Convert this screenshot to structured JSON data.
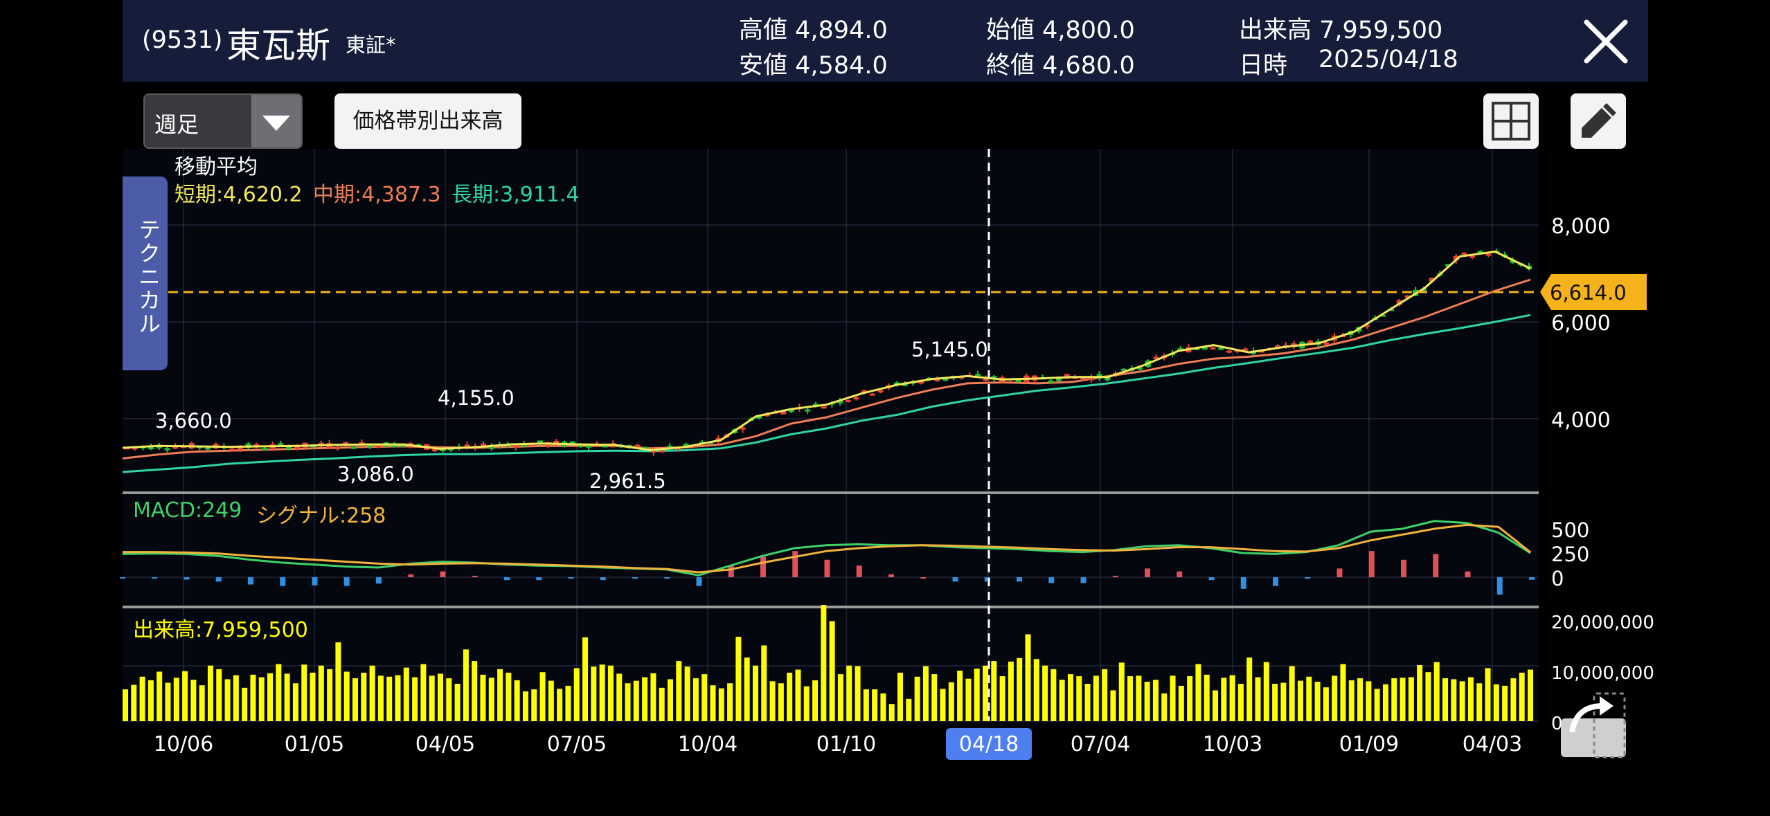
{
  "header": {
    "code": "(9531)",
    "name": "東瓦斯",
    "market": "東証*",
    "high": "高値 4,894.0",
    "low": "安値 4,584.0",
    "open": "始値 4,800.0",
    "close": "終値 4,680.0",
    "volume": "出来高 7,959,500",
    "date_label": "日時",
    "date": "2025/04/18",
    "close_icon": "close-icon"
  },
  "toolbar": {
    "period": "週足",
    "volume_profile": "価格帯別出来高",
    "layout_icon": "grid-icon",
    "draw_icon": "pencil-icon"
  },
  "technical_tab": "テクニカル",
  "legend": {
    "ma_title": "移動平均",
    "ma_short": "短期:4,620.2",
    "ma_mid": "中期:4,387.3",
    "ma_long": "長期:3,911.4",
    "macd": "MACD:249",
    "signal": "シグナル:258",
    "volume": "出来高:7,959,500"
  },
  "colors": {
    "bg": "#000000",
    "header_bg": "#161d3a",
    "up": "#e8452c",
    "down": "#1fc22e",
    "ma_short": "#f2e85a",
    "ma_mid": "#ef7d55",
    "ma_long": "#2fd6a4",
    "macd": "#3ed16a",
    "signal": "#f2b33c",
    "hist_pos": "#e05058",
    "hist_neg": "#2f8fe0",
    "volume": "#ffff00",
    "current_price": "#f5b21a",
    "date_badge": "#4f7ef0"
  },
  "chart_data": [
    {
      "type": "candlestick",
      "title": "",
      "x_tick_labels": [
        "10/06",
        "01/05",
        "04/05",
        "07/05",
        "10/04",
        "01/10",
        "04/18",
        "07/04",
        "10/03",
        "01/09",
        "04/03"
      ],
      "y_tick_labels": [
        "8,000",
        "6,000",
        "4,000"
      ],
      "current_price": "6,614.0",
      "current_value": 6614,
      "crosshair_date": "04/18",
      "annotations": [
        "3,660.0",
        "3,086.0",
        "4,155.0",
        "2,961.5",
        "5,145.0"
      ],
      "ma_short_points": [
        3400,
        3440,
        3430,
        3420,
        3430,
        3440,
        3460,
        3470,
        3470,
        3380,
        3410,
        3470,
        3490,
        3470,
        3460,
        3350,
        3420,
        3560,
        4050,
        4200,
        4290,
        4520,
        4700,
        4820,
        4880,
        4810,
        4830,
        4860,
        4860,
        5100,
        5400,
        5520,
        5370,
        5480,
        5560,
        5800,
        6250,
        6700,
        7350,
        7450,
        7100
      ],
      "ma_mid_points": [
        3180,
        3260,
        3320,
        3340,
        3360,
        3380,
        3400,
        3420,
        3430,
        3410,
        3400,
        3420,
        3440,
        3440,
        3440,
        3390,
        3410,
        3470,
        3640,
        3900,
        4030,
        4230,
        4430,
        4600,
        4730,
        4750,
        4730,
        4760,
        4880,
        4980,
        5130,
        5240,
        5280,
        5350,
        5470,
        5640,
        5870,
        6100,
        6370,
        6640,
        6870
      ],
      "ma_long_points": [
        2900,
        2950,
        3000,
        3070,
        3110,
        3150,
        3180,
        3220,
        3250,
        3270,
        3270,
        3290,
        3310,
        3330,
        3340,
        3330,
        3350,
        3390,
        3510,
        3680,
        3800,
        3960,
        4080,
        4250,
        4380,
        4480,
        4580,
        4650,
        4730,
        4830,
        4930,
        5050,
        5150,
        5260,
        5360,
        5470,
        5620,
        5750,
        5870,
        6000,
        6140
      ]
    },
    {
      "type": "line",
      "title": "",
      "series": [
        {
          "name": "MACD",
          "values": [
            240,
            245,
            240,
            220,
            180,
            150,
            130,
            110,
            100,
            140,
            160,
            150,
            130,
            120,
            115,
            100,
            90,
            80,
            20,
            120,
            220,
            300,
            330,
            340,
            330,
            330,
            310,
            300,
            290,
            270,
            260,
            280,
            320,
            330,
            300,
            250,
            240,
            260,
            330,
            470,
            500,
            580,
            560,
            460,
            249
          ]
        },
        {
          "name": "シグナル",
          "values": [
            260,
            260,
            255,
            245,
            220,
            200,
            180,
            160,
            140,
            130,
            140,
            145,
            140,
            130,
            120,
            110,
            95,
            85,
            50,
            80,
            150,
            210,
            270,
            300,
            320,
            330,
            325,
            315,
            305,
            290,
            280,
            275,
            290,
            310,
            310,
            290,
            270,
            265,
            300,
            380,
            440,
            500,
            540,
            520,
            258
          ]
        }
      ],
      "histogram": [
        -2,
        -2,
        -8,
        -15,
        -25,
        -30,
        -28,
        -30,
        -22,
        10,
        20,
        5,
        -10,
        -10,
        -5,
        -10,
        -5,
        -5,
        -30,
        40,
        70,
        90,
        60,
        40,
        10,
        0,
        -15,
        -15,
        -15,
        -20,
        -20,
        5,
        30,
        20,
        -10,
        -40,
        -30,
        -5,
        30,
        90,
        60,
        80,
        20,
        -60,
        -9
      ],
      "y_tick_labels": [
        "500",
        "250",
        "0"
      ]
    },
    {
      "type": "bar",
      "title": "",
      "series": [
        {
          "name": "出来高",
          "values": [
            6.3,
            7.2,
            8.8,
            8.1,
            9.8,
            7.6,
            8.6,
            9.9,
            8.2,
            7.1,
            11.0,
            10.3,
            8.3,
            9.1,
            6.6,
            9.2,
            8.7,
            9.5,
            11.3,
            9.4,
            7.5,
            11.2,
            9.6,
            11.0,
            10.3,
            15.6,
            9.8,
            8.5,
            9.6,
            11.0,
            9.0,
            8.8,
            9.1,
            10.6,
            8.7,
            11.3,
            9.0,
            9.4,
            8.5,
            7.4,
            14.2,
            11.9,
            9.2,
            8.6,
            10.3,
            9.6,
            8.1,
            5.9,
            6.3,
            9.7,
            8.0,
            6.4,
            7.0,
            10.5,
            16.6,
            10.8,
            11.2,
            11.0,
            9.4,
            7.5,
            8.0,
            8.7,
            9.5,
            6.6,
            8.3,
            11.9,
            10.8,
            8.5,
            9.3,
            7.1,
            6.5,
            7.5,
            16.7,
            12.6,
            11.0,
            15.0,
            7.9,
            7.5,
            9.6,
            10.2,
            6.9,
            8.1,
            23.0,
            19.8,
            9.3,
            11.0,
            10.9,
            6.3,
            6.3,
            5.5,
            3.4,
            9.6,
            4.4,
            8.8,
            10.9,
            9.3,
            6.4,
            7.7,
            10.0,
            8.4,
            10.4,
            11.0,
            11.9,
            8.9,
            11.8,
            12.5,
            17.2,
            12.3,
            11.0,
            10.3,
            8.2,
            9.3,
            8.9,
            7.4,
            9.0,
            10.3,
            6.1,
            11.6,
            8.9,
            9.0,
            7.8,
            8.2,
            5.5,
            9.0,
            7.0,
            8.9,
            11.3,
            9.2,
            6.1,
            8.6,
            9.1,
            7.4,
            12.6,
            8.7,
            11.7,
            7.4,
            7.6,
            10.9,
            8.0,
            8.8,
            7.8,
            6.7,
            9.0,
            11.3,
            8.1,
            8.5,
            7.9,
            6.4,
            7.3,
            8.5,
            8.6,
            8.7,
            11.1,
            9.7,
            11.7,
            8.5,
            8.3,
            7.9,
            8.7,
            7.5,
            10.5,
            7.3,
            7.0,
            8.5,
            9.6,
            10.2
          ]
        }
      ],
      "y_tick_labels": [
        "20,000,000",
        "10,000,000",
        "0"
      ]
    }
  ]
}
